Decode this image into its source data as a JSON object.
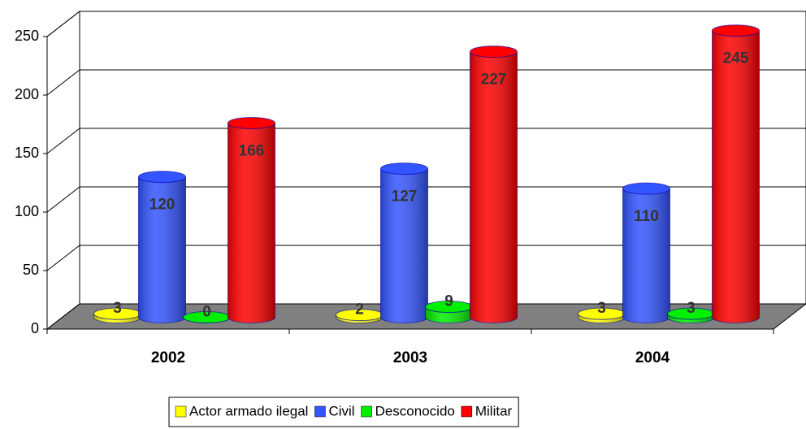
{
  "chart_data": {
    "type": "bar3d",
    "categories": [
      "2002",
      "2003",
      "2004"
    ],
    "series": [
      {
        "name": "Actor armado ilegal",
        "color": "#ffff00",
        "values": [
          3,
          2,
          3
        ]
      },
      {
        "name": "Civil",
        "color": "#3355ff",
        "values": [
          120,
          127,
          110
        ]
      },
      {
        "name": "Desconocido",
        "color": "#00ee00",
        "values": [
          0,
          9,
          3
        ]
      },
      {
        "name": "Militar",
        "color": "#ff0000",
        "values": [
          166,
          227,
          245
        ]
      }
    ],
    "ylim": [
      0,
      250
    ],
    "yticks": [
      0,
      50,
      100,
      150,
      200,
      250
    ],
    "grid": true,
    "legend": "bottom"
  }
}
